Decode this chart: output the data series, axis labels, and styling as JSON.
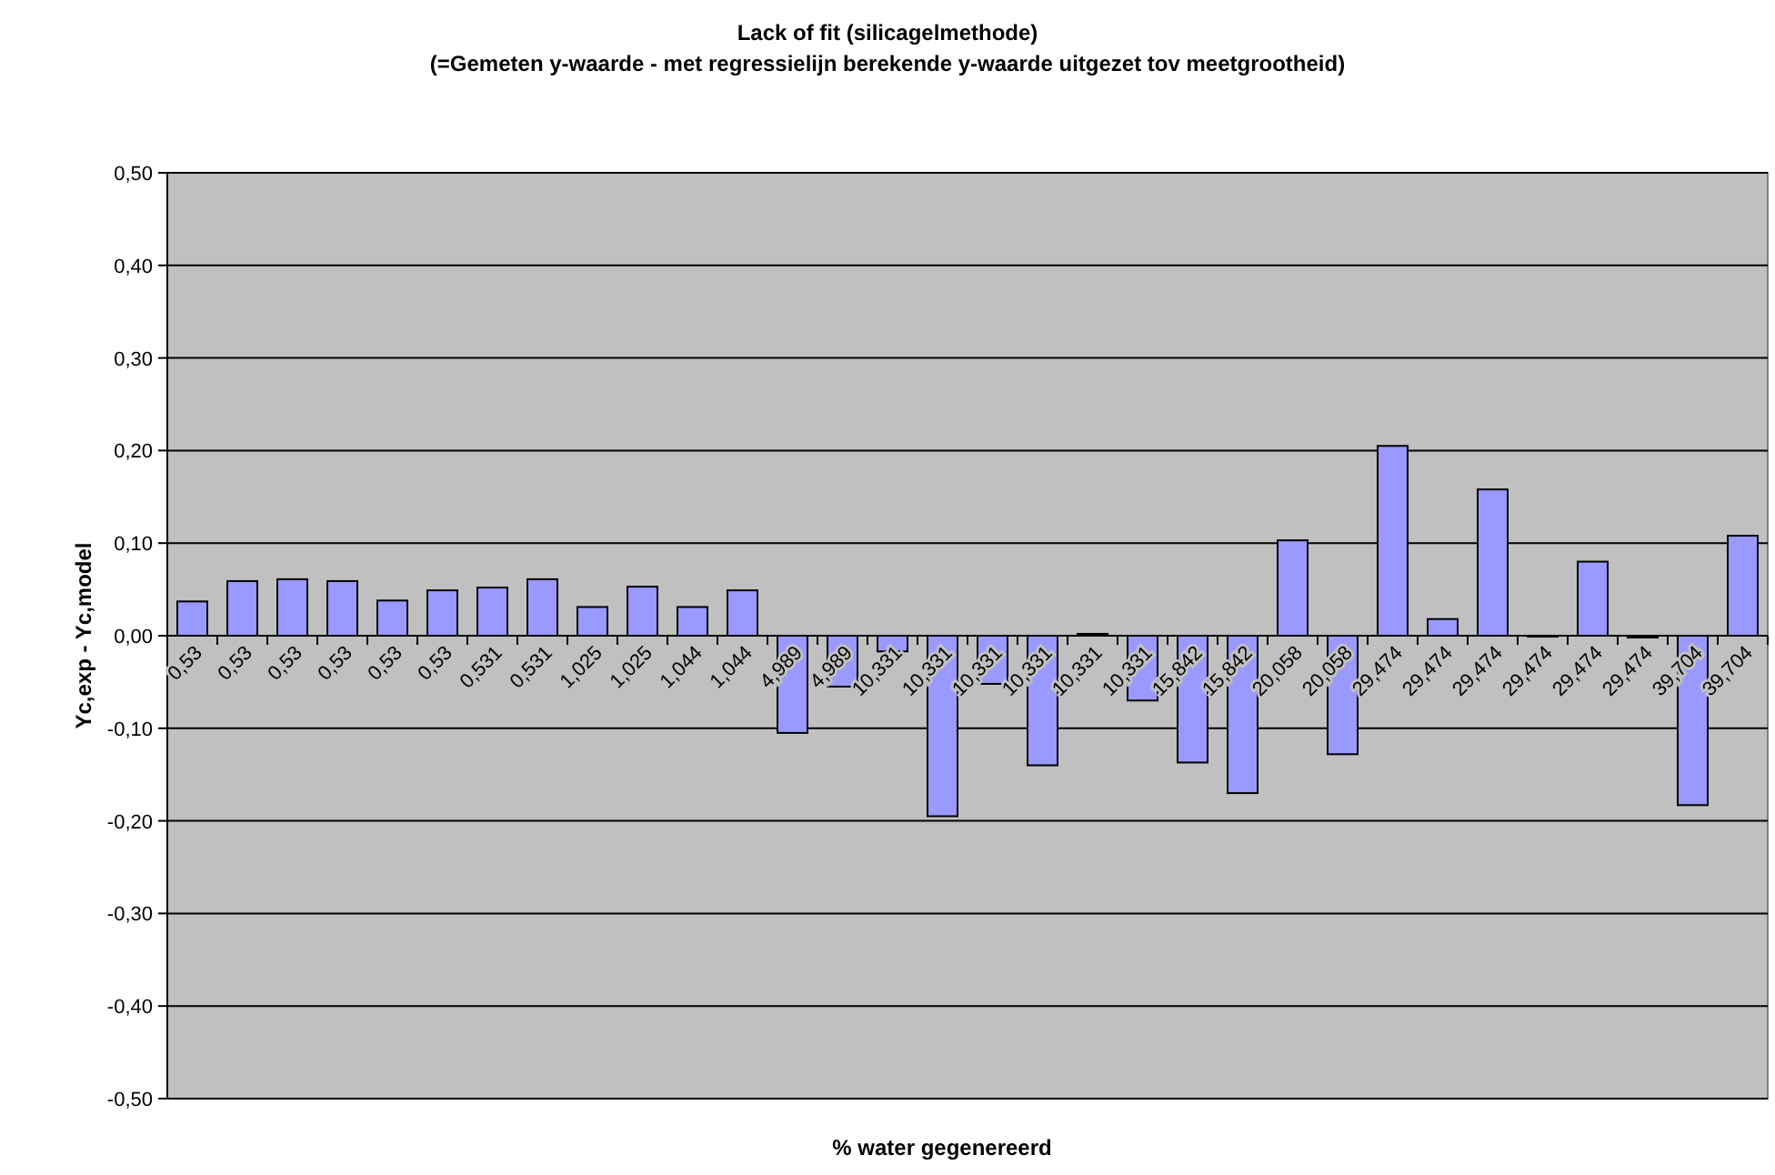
{
  "chart_data": {
    "type": "bar",
    "title": "Lack of fit (silicagelmethode)",
    "subtitle": "(=Gemeten y-waarde - met regressielijn berekende y-waarde uitgezet tov meetgrootheid)",
    "xlabel": "% water gegenereerd",
    "ylabel": "Yc,exp - Yc,model",
    "categories": [
      "0,53",
      "0,53",
      "0,53",
      "0,53",
      "0,53",
      "0,53",
      "0,531",
      "0,531",
      "1,025",
      "1,025",
      "1,044",
      "1,044",
      "4,989",
      "4,989",
      "10,331",
      "10,331",
      "10,331",
      "10,331",
      "10,331",
      "10,331",
      "15,842",
      "15,842",
      "20,058",
      "20,058",
      "29,474",
      "29,474",
      "29,474",
      "29,474",
      "29,474",
      "29,474",
      "39,704",
      "39,704"
    ],
    "values": [
      0.037,
      0.059,
      0.061,
      0.059,
      0.038,
      0.049,
      0.052,
      0.061,
      0.031,
      0.053,
      0.031,
      0.049,
      -0.105,
      -0.055,
      -0.017,
      -0.195,
      -0.052,
      -0.14,
      0.002,
      -0.07,
      -0.137,
      -0.17,
      0.103,
      -0.128,
      0.205,
      0.018,
      0.158,
      -0.001,
      0.08,
      -0.002,
      -0.183,
      0.108
    ],
    "color": "#9999ff",
    "ylim": [
      -0.5,
      0.5
    ],
    "yticks": [
      {
        "value": -0.5,
        "label": "-0,50"
      },
      {
        "value": -0.4,
        "label": "-0,40"
      },
      {
        "value": -0.3,
        "label": "-0,30"
      },
      {
        "value": -0.2,
        "label": "-0,20"
      },
      {
        "value": -0.1,
        "label": "-0,10"
      },
      {
        "value": 0,
        "label": "0,00"
      },
      {
        "value": 0.1,
        "label": "0,10"
      },
      {
        "value": 0.2,
        "label": "0,20"
      },
      {
        "value": 0.3,
        "label": "0,30"
      },
      {
        "value": 0.4,
        "label": "0,40"
      },
      {
        "value": 0.5,
        "label": "0,50"
      }
    ],
    "grid": "y"
  }
}
